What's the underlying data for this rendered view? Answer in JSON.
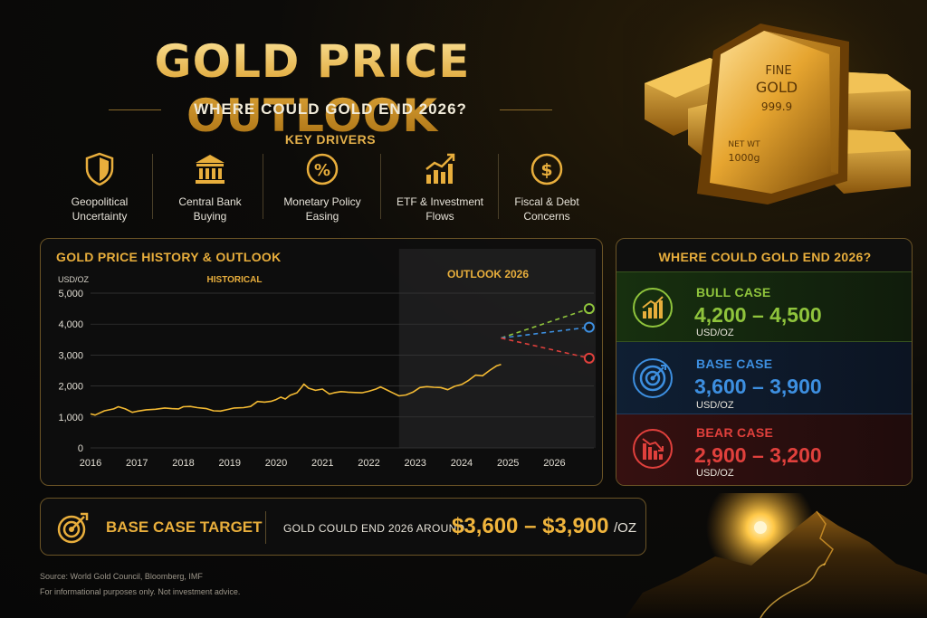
{
  "header": {
    "title": "GOLD PRICE OUTLOOK",
    "subtitle": "WHERE COULD GOLD END 2026?"
  },
  "drivers": {
    "label": "KEY DRIVERS",
    "items": [
      {
        "icon": "shield-icon",
        "line1": "Geopolitical",
        "line2": "Uncertainty"
      },
      {
        "icon": "bank-icon",
        "line1": "Central Bank",
        "line2": "Buying"
      },
      {
        "icon": "percent-icon",
        "line1": "Monetary Policy",
        "line2": "Easing"
      },
      {
        "icon": "growth-chart-icon",
        "line1": "ETF & Investment",
        "line2": "Flows"
      },
      {
        "icon": "dollar-coin-icon",
        "line1": "Fiscal & Debt",
        "line2": "Concerns"
      }
    ]
  },
  "gold_bar_text": {
    "line1": "FINE",
    "line2": "GOLD",
    "line3": "999.9",
    "line4": "NET WT",
    "line5": "1000g"
  },
  "chart_data": {
    "type": "line",
    "title": "GOLD PRICE HISTORY & OUTLOOK",
    "ylabel": "USD/OZ",
    "ylim": [
      0,
      5000
    ],
    "yticks": [
      "0",
      "1,000",
      "2,000",
      "3,000",
      "4,000",
      "5,000"
    ],
    "ytick_values": [
      0,
      1000,
      2000,
      3000,
      4000,
      5000
    ],
    "xticks": [
      "2016",
      "2017",
      "2018",
      "2019",
      "2020",
      "2021",
      "2022",
      "2023",
      "2024",
      "2025",
      "2026"
    ],
    "xtick_values": [
      2016,
      2017,
      2018,
      2019,
      2020,
      2021,
      2022,
      2023,
      2024,
      2025,
      2026
    ],
    "xlim": [
      2016,
      2026.85
    ],
    "region_labels": {
      "historical": "HISTORICAL",
      "outlook": "OUTLOOK 2026"
    },
    "outlook_start": 2022.65,
    "grid": true,
    "historical": {
      "x": [
        2016.0,
        2016.1,
        2016.3,
        2016.5,
        2016.6,
        2016.75,
        2016.9,
        2017.0,
        2017.2,
        2017.4,
        2017.6,
        2017.75,
        2017.9,
        2018.0,
        2018.15,
        2018.3,
        2018.5,
        2018.65,
        2018.8,
        2018.95,
        2019.1,
        2019.3,
        2019.45,
        2019.6,
        2019.75,
        2019.9,
        2020.0,
        2020.1,
        2020.2,
        2020.3,
        2020.45,
        2020.55,
        2020.6,
        2020.7,
        2020.85,
        2021.0,
        2021.15,
        2021.25,
        2021.4,
        2021.55,
        2021.7,
        2021.85,
        2022.0,
        2022.15,
        2022.25,
        2022.35,
        2022.5,
        2022.65,
        2022.8,
        2022.95,
        2023.1,
        2023.25,
        2023.4,
        2023.55,
        2023.7,
        2023.85,
        2024.0,
        2024.15,
        2024.3,
        2024.45,
        2024.6,
        2024.75,
        2024.85
      ],
      "y": [
        1100,
        1060,
        1200,
        1260,
        1330,
        1260,
        1150,
        1180,
        1230,
        1250,
        1290,
        1270,
        1260,
        1330,
        1340,
        1300,
        1270,
        1200,
        1190,
        1240,
        1290,
        1300,
        1340,
        1500,
        1480,
        1510,
        1560,
        1640,
        1580,
        1700,
        1780,
        1960,
        2060,
        1930,
        1860,
        1900,
        1740,
        1780,
        1820,
        1800,
        1790,
        1780,
        1830,
        1900,
        1970,
        1900,
        1790,
        1680,
        1710,
        1800,
        1950,
        1980,
        1960,
        1950,
        1880,
        1990,
        2050,
        2180,
        2350,
        2330,
        2500,
        2650,
        2700
      ],
      "color": "#f2b933"
    },
    "scenarios": [
      {
        "name": "BULL CASE",
        "end_x": 2026.75,
        "end_y": 4500,
        "color": "#8fc43c"
      },
      {
        "name": "BASE CASE",
        "end_x": 2026.75,
        "end_y": 3900,
        "color": "#3d8fe0"
      },
      {
        "name": "BEAR CASE",
        "end_x": 2026.75,
        "end_y": 2900,
        "color": "#e0403c"
      }
    ],
    "scenario_start": {
      "x": 2024.85,
      "y": 3550
    }
  },
  "scenarios_panel": {
    "title": "WHERE COULD GOLD END 2026?",
    "cases": [
      {
        "name": "BULL CASE",
        "range": "4,200 – 4,500",
        "unit": "USD/OZ",
        "icon": "bar-chart-up-icon",
        "color": "#8fc43c"
      },
      {
        "name": "BASE CASE",
        "range": "3,600 – 3,900",
        "unit": "USD/OZ",
        "icon": "target-icon",
        "color": "#3d8fe0"
      },
      {
        "name": "BEAR CASE",
        "range": "2,900 – 3,200",
        "unit": "USD/OZ",
        "icon": "bar-chart-down-icon",
        "color": "#e0403c"
      }
    ]
  },
  "target": {
    "label": "BASE CASE TARGET",
    "text": "GOLD COULD END 2026 AROUND",
    "range": "$3,600 – $3,900",
    "unit": "/OZ",
    "icon": "target-icon"
  },
  "footer": {
    "source": "Source: World Gold Council, Bloomberg, IMF",
    "disclaimer": "For informational purposes only. Not investment advice."
  },
  "colors": {
    "gold": "#e8ae3c",
    "bull": "#8fc43c",
    "base": "#3d8fe0",
    "bear": "#e0403c"
  }
}
